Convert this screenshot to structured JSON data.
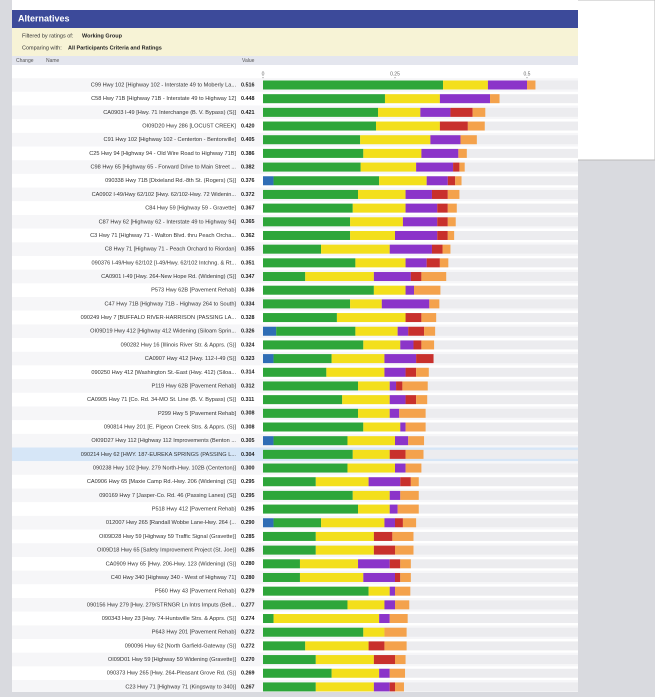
{
  "chart_data": {
    "type": "bar",
    "orientation": "horizontal",
    "stacked": true,
    "title": "Alternatives",
    "filter_label": "Filtered by ratings of:",
    "filter_value": "Working Group",
    "compare_label": "Comparing with:",
    "compare_value": "All Participants Criteria and Ratings",
    "columns": [
      "Change",
      "Name",
      "Value"
    ],
    "xlim": [
      0,
      0.75
    ],
    "xticks": [
      0,
      0.25,
      0.5
    ],
    "highlight_index": 27,
    "categories": [
      "C99 Hwy 102 [Highway 102 - Interstate 49 to Moberly La...",
      "C58 Hwy 71B [Highway 71B - Interstate 49 to Highway 12]",
      "CA0903 I-49 [Hwy. 71 Interchange (B. V. Bypass) (S)]",
      "OI09D20 Hwy 286 [LOCUST CREEK]",
      "C91 Hwy 102 [Highway 102 - Centerton - Bentonville]",
      "C25 Hwy 94 [Highway 94 - Old Wire Road to Highway 71B]",
      "C98 Hwy 65 [Highway 65 - Forward Drive to Main Street ...",
      "090338 Hwy 71B [Dixieland Rd.-8th St. (Rogers) (S)]",
      "CA0902 I-49/Hwy 62/102 [Hwy. 62/102-Hwy. 72 Widenin...",
      "C84 Hwy 59 [Highway 59 - Gravette]",
      "C87 Hwy 62 [Highway 62 - Interstate 49 to Highway 94]",
      "C3 Hwy 71 [Highway 71 - Walton Blvd. thru Peach Orcha...",
      "C8 Hwy 71 [Highway 71 - Peach Orchard to Riordan]",
      "090376 I-49/Hwy 62/102 [I-49/Hwy. 62/102 Intchng. & Rt...",
      "CA0901 I-49 [Hwy. 264-New Hope Rd. (Widening) (S)]",
      "P573 Hwy 62B [Pavement Rehab]",
      "C47 Hwy 71B [Highway 71B - Highway 264 to South]",
      "090249 Hwy 7 [BUFFALO RIVER-HARRISON (PASSING LA...",
      "OI09D19 Hwy 412 [Highway 412 Widening (Siloam Sprin...",
      "090282 Hwy 16 [Illinois River Str. & Apprs. (S)]",
      "CA0907 Hwy 412 [Hwy. 112-I-49 (S)]",
      "090250 Hwy 412 [Washington St.-East (Hwy. 412) (Siloa...",
      "P119 Hwy 62B [Pavement Rehab]",
      "CA0905 Hwy 71 [Co. Rd. 34-MO St. Line (B. V. Bypass) (S)]",
      "P299 Hwy 5 [Pavement Rehab]",
      "090814 Hwy 201 [E. Pigeon Creek Strs. & Apprs. (S)]",
      "OI09D27 Hwy 112 [Highway 112 Improvements (Benton ...",
      "090214 Hwy 62 [HWY. 187-EUREKA SPRINGS (PASSING L...",
      "090238 Hwy 102 [Hwy. 279 North-Hwy. 102B (Centerton)]",
      "CA0906 Hwy 65 [Maxie Camp Rd.-Hwy. 206 (Widening) (S)]",
      "090169 Hwy 7 [Jasper-Co. Rd. 46 (Passing Lanes) (S)]",
      "P518 Hwy 412 [Pavement Rehab]",
      "012007 Hwy 265 [Randall Wobbe Lane-Hwy. 264 (...",
      "OI09D28 Hwy 59 [Highway 59 Traffic Signal (Gravette)]",
      "OI09D18 Hwy 65 [Safety Improvement Project (St. Joe)]",
      "CA0909 Hwy 65 [Hwy. 206-Hwy. 123 (Widening) (S)]",
      "C40 Hwy 340 [Highway 340 - West of Highway 71]",
      "P560 Hwy 43 [Pavement Rehab]",
      "090156 Hwy 279 [Hwy. 279/STRNGR Ln Intrs Imputs (Bell...",
      "090343 Hwy 23 [Hwy. 74-Huntsville Strs. & Apprs. (S)]",
      "P643 Hwy 201 [Pavement Rehab]",
      "090096 Hwy 62 [North Garfield-Gateway (S)]",
      "OI09D01 Hwy 59 [Highway 59 Widening (Gravette)]",
      "090373 Hwy 265 [Hwy. 264-Pleasant Grove Rd. (S)]",
      "C23 Hwy 71 [Highway 71 (Kingsway to 340)]"
    ],
    "value_labels": [
      "0.516",
      "0.448",
      "0.421",
      "0.420",
      "0.405",
      "0.386",
      "0.382",
      "0.376",
      "0.372",
      "0.367",
      "0.365",
      "0.362",
      "0.355",
      "0.351",
      "0.347",
      "0.336",
      "0.334",
      "0.328",
      "0.326",
      "0.324",
      "0.323",
      "0.314",
      "0.312",
      "0.311",
      "0.308",
      "0.308",
      "0.305",
      "0.304",
      "0.300",
      "0.295",
      "0.295",
      "0.295",
      "0.290",
      "0.285",
      "0.285",
      "0.280",
      "0.280",
      "0.279",
      "0.277",
      "0.274",
      "0.272",
      "0.272",
      "0.270",
      "0.269",
      "0.267"
    ],
    "series": [
      {
        "color": "#2f6db5",
        "values": [
          null,
          null,
          null,
          null,
          null,
          null,
          null,
          0.02,
          null,
          null,
          null,
          null,
          null,
          null,
          null,
          null,
          null,
          null,
          0.025,
          null,
          0.02,
          null,
          null,
          null,
          null,
          null,
          0.02,
          null,
          null,
          null,
          null,
          null,
          0.02,
          null,
          null,
          null,
          null,
          null,
          null,
          null,
          null,
          null,
          null,
          null,
          null
        ]
      },
      {
        "color": "#2ea63a",
        "values": [
          0.341,
          0.231,
          0.218,
          0.214,
          0.184,
          0.19,
          0.185,
          0.2,
          0.18,
          0.17,
          0.165,
          0.165,
          0.11,
          0.175,
          0.08,
          0.21,
          0.165,
          0.14,
          0.15,
          0.19,
          0.11,
          0.12,
          0.18,
          0.15,
          0.18,
          0.19,
          0.14,
          0.17,
          0.16,
          0.1,
          0.17,
          0.18,
          0.09,
          0.1,
          0.1,
          0.07,
          0.07,
          0.2,
          0.16,
          0.02,
          0.19,
          0.08,
          0.1,
          0.13,
          0.1
        ]
      },
      {
        "color": "#f3df1c",
        "values": [
          0.085,
          0.104,
          0.08,
          0.121,
          0.133,
          0.11,
          0.105,
          0.09,
          0.09,
          0.1,
          0.1,
          0.085,
          0.13,
          0.095,
          0.13,
          0.06,
          0.06,
          0.13,
          0.08,
          0.07,
          0.1,
          0.11,
          0.06,
          0.09,
          0.06,
          0.07,
          0.09,
          0.07,
          0.09,
          0.1,
          0.07,
          0.06,
          0.12,
          0.11,
          0.11,
          0.11,
          0.12,
          0.04,
          0.07,
          0.2,
          0.04,
          0.12,
          0.11,
          0.09,
          0.11
        ]
      },
      {
        "color": "#8b34c9",
        "values": [
          0.074,
          0.095,
          0.057,
          null,
          0.057,
          0.07,
          0.07,
          0.04,
          0.05,
          0.06,
          0.065,
          0.08,
          0.08,
          0.04,
          0.07,
          0.016,
          0.09,
          null,
          0.02,
          0.025,
          0.06,
          0.04,
          0.012,
          0.03,
          0.018,
          0.01,
          0.025,
          null,
          0.02,
          0.06,
          0.02,
          0.015,
          0.02,
          null,
          null,
          0.06,
          0.06,
          0.01,
          0.02,
          0.02,
          null,
          null,
          null,
          0.02,
          0.03
        ]
      },
      {
        "color": "#c8302c",
        "values": [
          null,
          null,
          0.042,
          0.053,
          null,
          null,
          0.012,
          0.014,
          0.03,
          0.02,
          0.02,
          0.02,
          0.02,
          0.025,
          0.02,
          null,
          null,
          0.03,
          0.03,
          0.015,
          0.033,
          0.02,
          0.012,
          0.02,
          null,
          null,
          null,
          0.03,
          null,
          0.02,
          null,
          null,
          0.015,
          0.035,
          0.04,
          0.02,
          0.01,
          null,
          null,
          null,
          null,
          0.03,
          0.04,
          null,
          0.01
        ]
      },
      {
        "color": "#f4a24c",
        "values": [
          0.016,
          0.018,
          0.024,
          0.032,
          0.031,
          0.016,
          0.01,
          0.012,
          0.022,
          0.017,
          0.015,
          0.012,
          0.015,
          0.016,
          0.047,
          0.05,
          0.019,
          0.028,
          0.021,
          0.024,
          null,
          0.024,
          0.048,
          0.021,
          0.05,
          0.038,
          0.03,
          0.034,
          0.03,
          0.015,
          0.035,
          0.04,
          0.025,
          0.04,
          0.035,
          0.02,
          0.02,
          0.029,
          0.027,
          0.034,
          0.042,
          0.042,
          0.02,
          0.029,
          0.017
        ]
      }
    ]
  }
}
